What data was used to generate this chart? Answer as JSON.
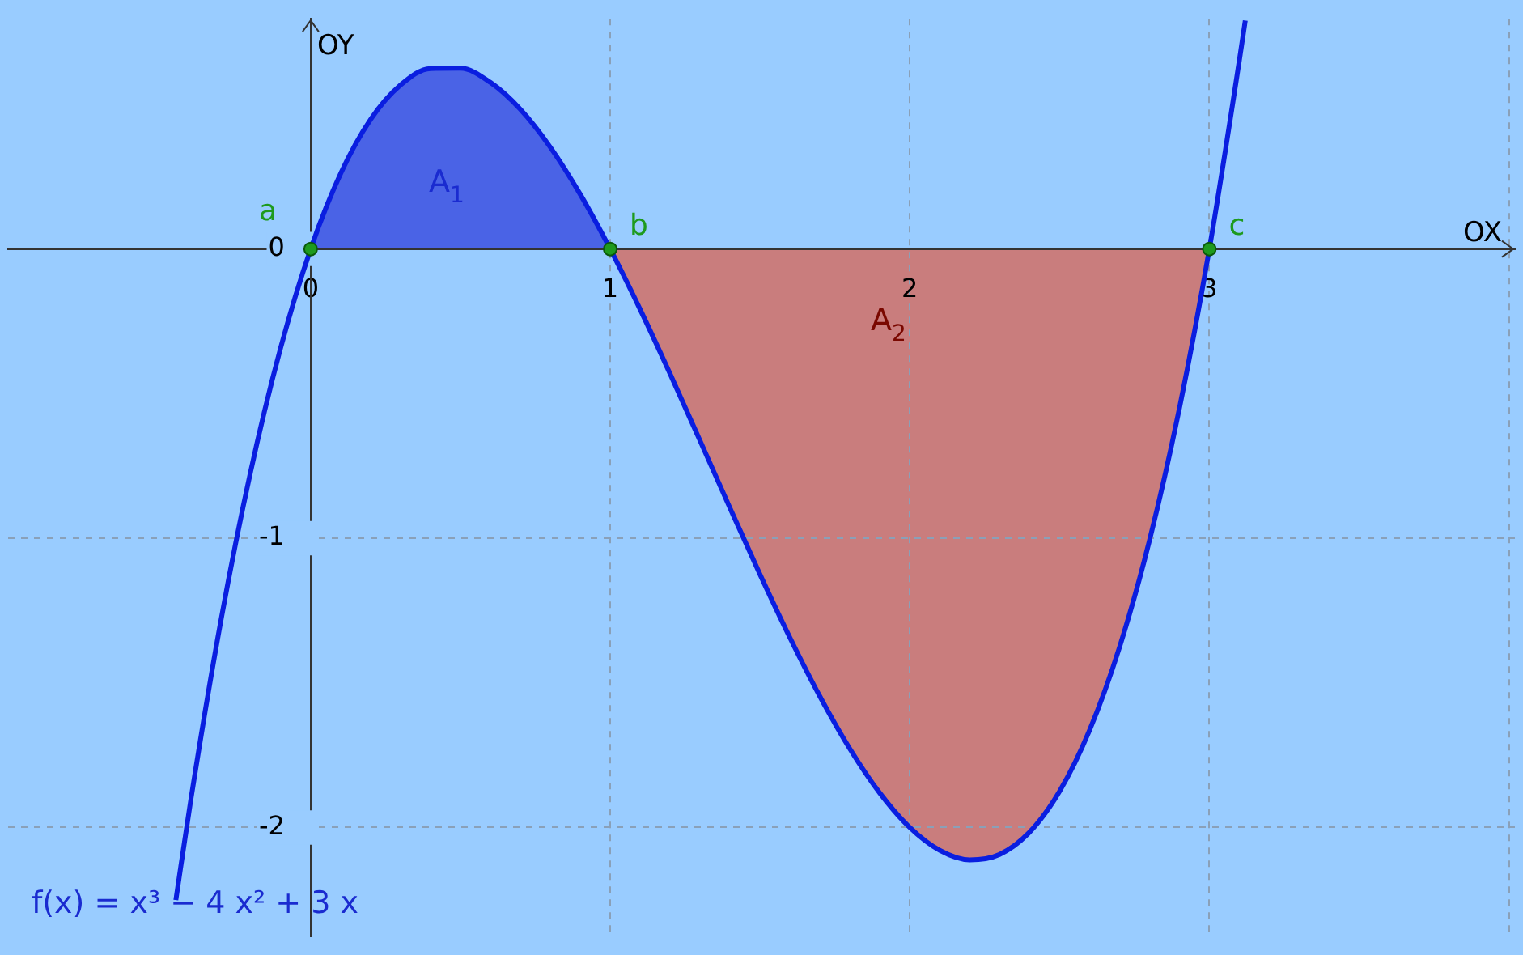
{
  "chart_data": {
    "type": "line",
    "xlabel": "OX",
    "ylabel": "OY",
    "xlim": [
      -1.01,
      4.02
    ],
    "ylim": [
      -2.376,
      0.796
    ],
    "xticks": [
      0,
      1,
      2,
      3,
      {
        "value": 4,
        "label": null
      }
    ],
    "yticks": [
      -2,
      -1,
      0
    ],
    "grid": true,
    "legend": false,
    "series": [
      {
        "type": "area",
        "color": "#4a63e6",
        "x": [
          0,
          0.1,
          0.2,
          0.3,
          0.4,
          0.5,
          0.6,
          0.7,
          0.8,
          0.9,
          1
        ],
        "values": [
          0,
          0.261,
          0.448,
          0.567,
          0.624,
          0.625,
          0.576,
          0.483,
          0.352,
          0.189,
          0
        ]
      },
      {
        "type": "area",
        "color": "#c97d7d",
        "x": [
          1,
          1.1,
          1.2,
          1.3,
          1.4,
          1.5,
          1.6,
          1.7,
          1.8,
          1.9,
          2,
          2.1,
          2.2,
          2.3,
          2.4,
          2.5,
          2.6,
          2.7,
          2.8,
          2.9,
          3
        ],
        "values": [
          0,
          -0.209,
          -0.432,
          -0.663,
          -0.896,
          -1.125,
          -1.344,
          -1.547,
          -1.728,
          -1.881,
          -2,
          -2.079,
          -2.112,
          -2.093,
          -2.016,
          -1.875,
          -1.664,
          -1.377,
          -1.008,
          -0.551,
          0
        ]
      },
      {
        "color": "#0a1ee0",
        "x": [
          -0.45,
          -0.4,
          -0.3,
          -0.2,
          -0.1,
          0,
          0.1,
          0.2,
          0.3,
          0.4,
          0.5,
          0.6,
          0.7,
          0.8,
          0.9,
          1,
          1.1,
          1.2,
          1.3,
          1.4,
          1.5,
          1.6,
          1.7,
          1.8,
          1.9,
          2,
          2.1,
          2.2,
          2.3,
          2.4,
          2.5,
          2.6,
          2.7,
          2.8,
          2.9,
          3,
          3.1,
          3.12
        ],
        "values": [
          -2.251,
          -1.904,
          -1.287,
          -0.768,
          -0.341,
          0,
          0.261,
          0.448,
          0.567,
          0.624,
          0.625,
          0.576,
          0.483,
          0.352,
          0.189,
          0,
          -0.209,
          -0.432,
          -0.663,
          -0.896,
          -1.125,
          -1.344,
          -1.547,
          -1.728,
          -1.881,
          -2,
          -2.079,
          -2.112,
          -2.093,
          -2.016,
          -1.875,
          -1.664,
          -1.377,
          -1.008,
          -0.551,
          0,
          0.651,
          0.79
        ]
      },
      {
        "type": "scatter",
        "name": "a",
        "color": "#1e9a1e",
        "marker": "circle",
        "x": [
          0
        ],
        "values": [
          0
        ]
      },
      {
        "type": "scatter",
        "name": "b",
        "color": "#1e9a1e",
        "marker": "circle",
        "x": [
          1
        ],
        "values": [
          0
        ]
      },
      {
        "type": "scatter",
        "name": "c",
        "color": "#1e9a1e",
        "marker": "circle",
        "x": [
          3
        ],
        "values": [
          0
        ]
      }
    ],
    "annotations": [
      "A$_{1}$",
      "A$_{2}$",
      "f(x) = x³ − 4 x² + 3 x"
    ]
  }
}
